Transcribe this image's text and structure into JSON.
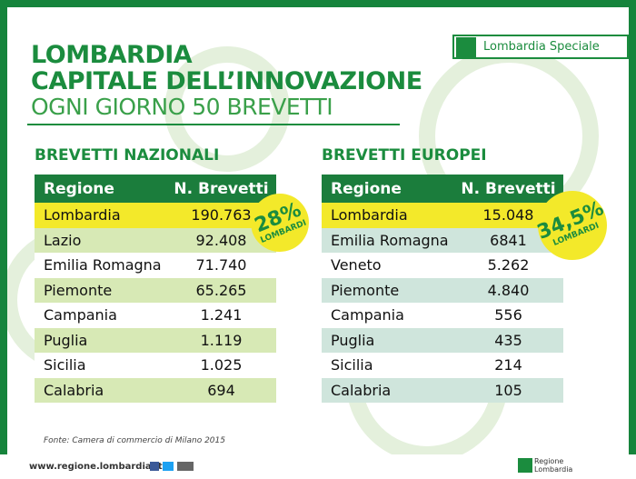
{
  "header": {
    "title_lines": [
      "LOMBARDIA",
      "CAPITALE DELL’INNOVAZIONE",
      "OGNI GIORNO 50 BREVETTI"
    ],
    "brand": "Lombardia Speciale"
  },
  "tables": [
    {
      "heading": "BREVETTI NAZIONALI",
      "columns": [
        "Regione",
        "N. Brevetti"
      ],
      "rows": [
        [
          "Lombardia",
          "190.763"
        ],
        [
          "Lazio",
          "92.408"
        ],
        [
          "Emilia Romagna",
          "71.740"
        ],
        [
          "Piemonte",
          "65.265"
        ],
        [
          "Campania",
          "1.241"
        ],
        [
          "Puglia",
          "1.119"
        ],
        [
          "Sicilia",
          "1.025"
        ],
        [
          "Calabria",
          "694"
        ]
      ],
      "badge": {
        "percent": "28%",
        "label": "LOMBARDI"
      }
    },
    {
      "heading": "BREVETTI EUROPEI",
      "columns": [
        "Regione",
        "N. Brevetti"
      ],
      "rows": [
        [
          "Lombardia",
          "15.048"
        ],
        [
          "Emilia Romagna",
          "6841"
        ],
        [
          "Veneto",
          "5.262"
        ],
        [
          "Piemonte",
          "4.840"
        ],
        [
          "Campania",
          "556"
        ],
        [
          "Puglia",
          "435"
        ],
        [
          "Sicilia",
          "214"
        ],
        [
          "Calabria",
          "105"
        ]
      ],
      "badge": {
        "percent": "34,5%",
        "label": "LOMBARDI"
      }
    }
  ],
  "source": "Fonte: Camera di commercio di Milano 2015",
  "footer": {
    "url": "www.regione.lombardia.it",
    "logo_text": "Regione Lombardia"
  }
}
